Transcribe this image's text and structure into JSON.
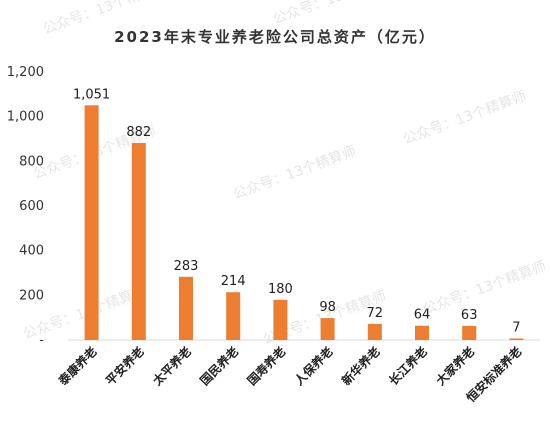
{
  "watermark": "公众号：13个精算师",
  "chart_data": {
    "type": "bar",
    "title": "2023年末专业养老险公司总资产（亿元）",
    "categories": [
      "泰康养老",
      "平安养老",
      "太平养老",
      "国民养老",
      "国寿养老",
      "人保养老",
      "新华养老",
      "长江养老",
      "大家养老",
      "恒安标准养老"
    ],
    "values": [
      1051,
      882,
      283,
      214,
      180,
      98,
      72,
      64,
      63,
      7
    ],
    "value_labels": [
      "1,051",
      "882",
      "283",
      "214",
      "180",
      "98",
      "72",
      "64",
      "63",
      "7"
    ],
    "ylim": [
      0,
      1200
    ],
    "yticks": [
      0,
      200,
      400,
      600,
      800,
      1000,
      1200
    ],
    "ytick_labels": [
      "-",
      "200",
      "400",
      "600",
      "800",
      "1,000",
      "1,200"
    ],
    "xlabel": "",
    "ylabel": "",
    "grid": false,
    "bar_color": "#ED7D31"
  }
}
